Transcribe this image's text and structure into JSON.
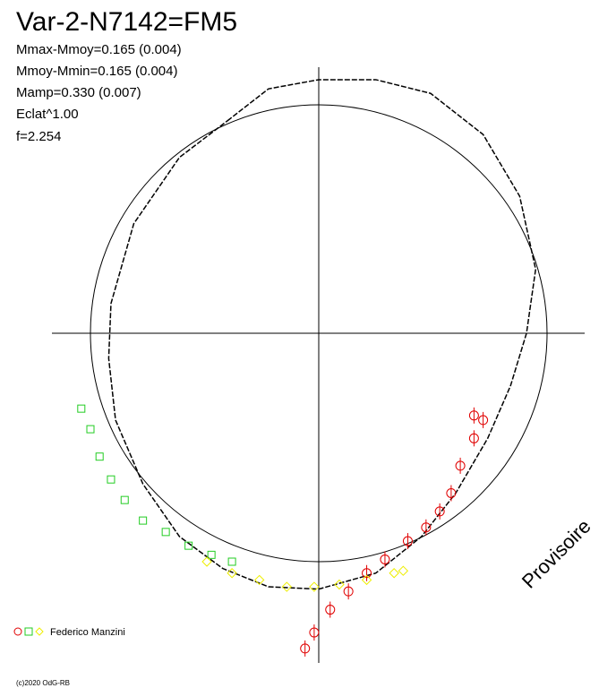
{
  "chart_data": {
    "type": "scatter",
    "title": "Var-2-N7142=FM5",
    "info": [
      "Mmax-Mmoy=0.165 (0.004)",
      "Mmoy-Mmin=0.165 (0.004)",
      "Mamp=0.330 (0.007)",
      "Eclat^1.00",
      "f=2.254"
    ],
    "watermark": "Provisoire",
    "legend": "Federico Manzini",
    "footer": "(c)2020 OdG-RB",
    "fit": {
      "color": "#000000",
      "x": [
        -0.4,
        -0.22,
        0,
        0.25,
        0.49,
        0.72,
        0.88,
        0.95,
        0.91,
        0.84,
        0.74,
        0.6,
        0.45,
        0.25,
        0,
        -0.22,
        -0.42,
        -0.61,
        -0.77,
        -0.89,
        -0.92,
        -0.91,
        -0.81,
        -0.61,
        -0.4
      ],
      "y": [
        0.93,
        1.07,
        1.11,
        1.11,
        1.05,
        0.87,
        0.6,
        0.28,
        0,
        -0.23,
        -0.46,
        -0.7,
        -0.89,
        -1.05,
        -1.12,
        -1.11,
        -1.03,
        -0.89,
        -0.66,
        -0.38,
        -0.11,
        0.13,
        0.48,
        0.77,
        0.93
      ]
    },
    "series": [
      {
        "marker": "circle",
        "color": "#e00000",
        "x": [
          -0.06,
          -0.02,
          0.05,
          0.13,
          0.21,
          0.29,
          0.39,
          0.47,
          0.53,
          0.58,
          0.62,
          0.68,
          0.72,
          0.68
        ],
        "y": [
          -1.38,
          -1.31,
          -1.21,
          -1.13,
          -1.05,
          -0.99,
          -0.91,
          -0.85,
          -0.78,
          -0.7,
          -0.58,
          -0.46,
          -0.38,
          -0.36
        ]
      },
      {
        "marker": "square",
        "color": "#22cc22",
        "x": [
          -1.04,
          -1.0,
          -0.96,
          -0.91,
          -0.85,
          -0.77,
          -0.67,
          -0.57,
          -0.47,
          -0.38
        ],
        "y": [
          -0.33,
          -0.42,
          -0.54,
          -0.64,
          -0.73,
          -0.82,
          -0.87,
          -0.93,
          -0.97,
          -1.0
        ]
      },
      {
        "marker": "diamond",
        "color": "#eeee00",
        "x": [
          -0.49,
          -0.38,
          -0.26,
          -0.14,
          -0.02,
          0.09,
          0.21,
          0.33,
          0.37
        ],
        "y": [
          -1.0,
          -1.05,
          -1.08,
          -1.11,
          -1.11,
          -1.1,
          -1.08,
          -1.05,
          -1.04
        ]
      }
    ]
  }
}
